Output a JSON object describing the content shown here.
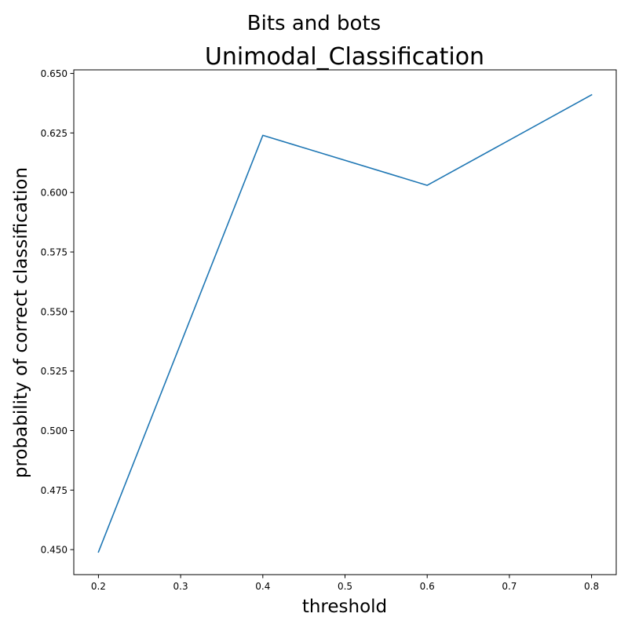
{
  "figure": {
    "suptitle": "Bits and bots"
  },
  "chart_data": {
    "type": "line",
    "title": "Unimodal_Classification",
    "xlabel": "threshold",
    "ylabel": "probability of correct classification",
    "x": [
      0.2,
      0.4,
      0.6,
      0.8
    ],
    "series": [
      {
        "values": [
          0.449,
          0.624,
          0.603,
          0.641
        ],
        "color": "#1f77b4"
      }
    ],
    "xlim": [
      0.17,
      0.83
    ],
    "ylim": [
      0.4395,
      0.6515
    ],
    "xticks": [
      0.2,
      0.3,
      0.4,
      0.5,
      0.6,
      0.7,
      0.8
    ],
    "xtick_labels": [
      "0.2",
      "0.3",
      "0.4",
      "0.5",
      "0.6",
      "0.7",
      "0.8"
    ],
    "yticks": [
      0.45,
      0.475,
      0.5,
      0.525,
      0.55,
      0.575,
      0.6,
      0.625,
      0.65
    ],
    "ytick_labels": [
      "0.450",
      "0.475",
      "0.500",
      "0.525",
      "0.550",
      "0.575",
      "0.600",
      "0.625",
      "0.650"
    ],
    "grid": false,
    "legend": "none"
  }
}
